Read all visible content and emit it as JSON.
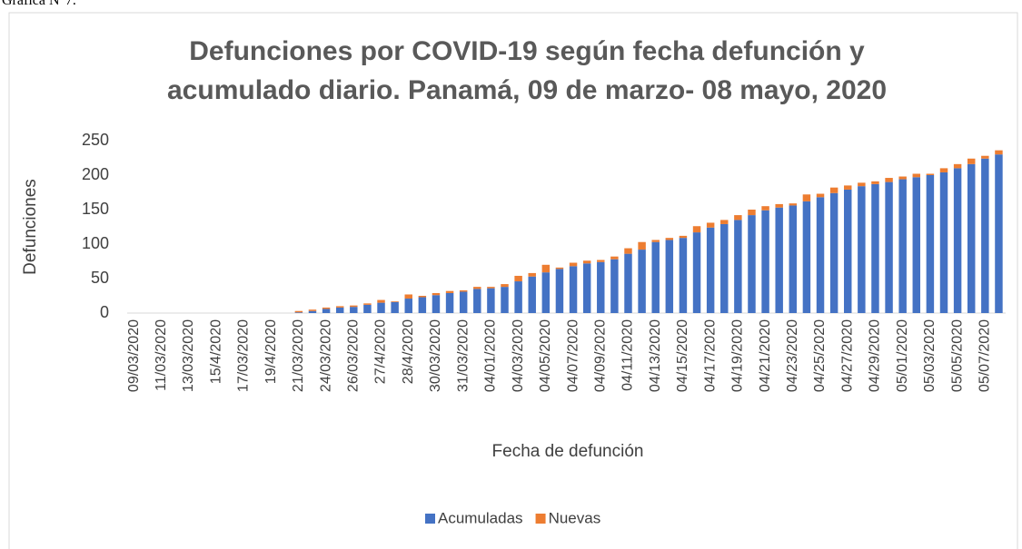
{
  "caption": "Gráfica N°7.",
  "chart_data": {
    "type": "stacked_bar",
    "title": [
      "Defunciones por COVID-19 según fecha defunción y",
      "acumulado diario.  Panamá, 09 de marzo- 08 mayo,  2020"
    ],
    "x_label": "Fecha de defunción",
    "y_label": "Defunciones",
    "categories": [
      "09/03/2020",
      null,
      "11/03/2020",
      null,
      "13/03/2020",
      null,
      "15/4/2020",
      null,
      "17/03/2020",
      null,
      "19/4/2020",
      null,
      "21/03/2020",
      null,
      "24/03/2020",
      null,
      "26/03/2020",
      null,
      "27/4/2020",
      null,
      "28/4/2020",
      null,
      "30/03/2020",
      null,
      "31/03/2020",
      null,
      "04/01/2020",
      null,
      "04/03/2020",
      null,
      "04/05/2020",
      null,
      "04/07/2020",
      null,
      "04/09/2020",
      null,
      "04/11/2020",
      null,
      "04/13/2020",
      null,
      "04/15/2020",
      null,
      "04/17/2020",
      null,
      "04/19/2020",
      null,
      "04/21/2020",
      null,
      "04/23/2020",
      null,
      "04/25/2020",
      null,
      "04/27/2020",
      null,
      "04/29/2020",
      null,
      "05/01/2020",
      null,
      "05/03/2020",
      null,
      "05/05/2020",
      null,
      "05/07/2020",
      null
    ],
    "series": [
      {
        "name": "Acumuladas",
        "color": "#4472c4",
        "values": [
          0,
          0,
          0,
          0,
          0,
          0,
          0,
          0,
          0,
          0,
          0,
          0,
          1,
          3,
          6,
          8,
          9,
          12,
          15,
          16,
          21,
          23,
          26,
          29,
          31,
          35,
          36,
          38,
          46,
          53,
          59,
          64,
          68,
          72,
          74,
          78,
          86,
          92,
          103,
          106,
          109,
          117,
          124,
          129,
          135,
          142,
          149,
          153,
          156,
          162,
          168,
          174,
          179,
          184,
          187,
          190,
          194,
          197,
          200,
          204,
          210,
          216,
          224,
          230
        ]
      },
      {
        "name": "Nuevas",
        "color": "#ed7d31",
        "values": [
          0,
          0,
          0,
          0,
          0,
          0,
          0,
          0,
          0,
          0,
          0,
          0,
          2,
          2,
          2,
          2,
          2,
          2,
          4,
          1,
          6,
          2,
          3,
          3,
          2,
          3,
          2,
          4,
          8,
          5,
          11,
          2,
          5,
          4,
          3,
          4,
          8,
          11,
          3,
          3,
          3,
          9,
          7,
          6,
          7,
          8,
          6,
          5,
          3,
          10,
          5,
          8,
          6,
          5,
          4,
          6,
          4,
          5,
          2,
          6,
          6,
          8,
          4,
          6
        ]
      }
    ],
    "ylim": [
      0,
      250
    ],
    "yticks": [
      0,
      50,
      100,
      150,
      200,
      250
    ],
    "grid": false,
    "legend": "bottom"
  }
}
